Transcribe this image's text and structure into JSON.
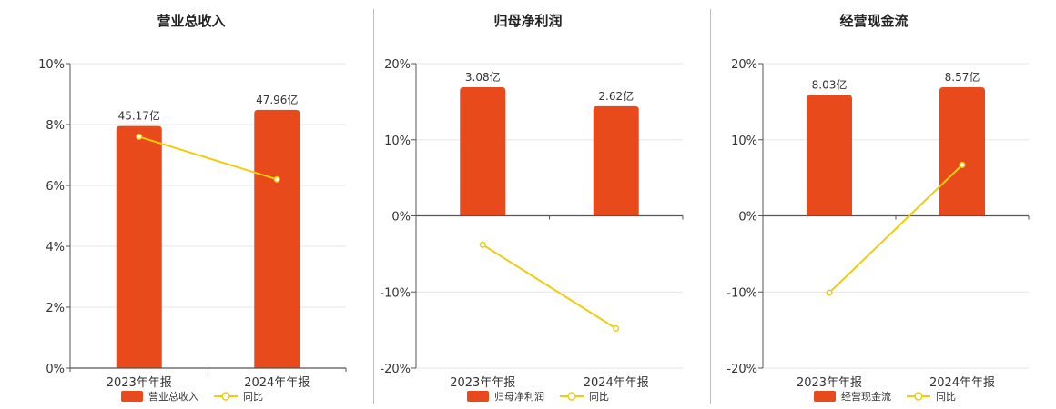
{
  "colors": {
    "bar": "#e84a1b",
    "line": "#f0cc0c",
    "grid": "#e6e6e6",
    "axis": "#555555"
  },
  "chart_data": [
    {
      "type": "bar",
      "title": "营业总收入",
      "categories": [
        "2023年年报",
        "2024年年报"
      ],
      "bar_labels": [
        "45.17亿",
        "47.96亿"
      ],
      "yoy": [
        7.6,
        6.2
      ],
      "ylim": [
        0,
        10
      ],
      "yticks": [
        "0%",
        "2%",
        "4%",
        "6%",
        "8%",
        "10%"
      ],
      "ytick_values": [
        0,
        2,
        4,
        6,
        8,
        10
      ],
      "legend": [
        "营业总收入",
        "同比"
      ]
    },
    {
      "type": "bar",
      "title": "归母净利润",
      "categories": [
        "2023年年报",
        "2024年年报"
      ],
      "bar_labels": [
        "3.08亿",
        "2.62亿"
      ],
      "yoy": [
        -3.8,
        -14.8
      ],
      "ylim": [
        -20,
        20
      ],
      "yticks": [
        "-20%",
        "-10%",
        "0%",
        "10%",
        "20%"
      ],
      "ytick_values": [
        -20,
        -10,
        0,
        10,
        20
      ],
      "legend": [
        "归母净利润",
        "同比"
      ]
    },
    {
      "type": "bar",
      "title": "经营现金流",
      "categories": [
        "2023年年报",
        "2024年年报"
      ],
      "bar_labels": [
        "8.03亿",
        "8.57亿"
      ],
      "yoy": [
        -10.1,
        6.7
      ],
      "ylim": [
        -20,
        20
      ],
      "yticks": [
        "-20%",
        "-10%",
        "0%",
        "10%",
        "20%"
      ],
      "ytick_values": [
        -20,
        -10,
        0,
        10,
        20
      ],
      "legend": [
        "经营现金流",
        "同比"
      ]
    }
  ]
}
